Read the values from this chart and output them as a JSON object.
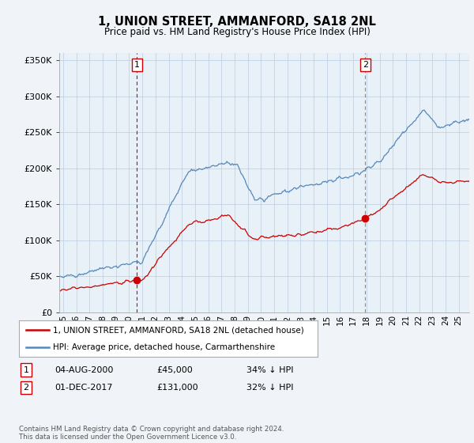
{
  "title": "1, UNION STREET, AMMANFORD, SA18 2NL",
  "subtitle": "Price paid vs. HM Land Registry's House Price Index (HPI)",
  "legend_line1": "1, UNION STREET, AMMANFORD, SA18 2NL (detached house)",
  "legend_line2": "HPI: Average price, detached house, Carmarthenshire",
  "footnote": "Contains HM Land Registry data © Crown copyright and database right 2024.\nThis data is licensed under the Open Government Licence v3.0.",
  "transaction1_label": "1",
  "transaction1_date": "04-AUG-2000",
  "transaction1_price": "£45,000",
  "transaction1_hpi": "34% ↓ HPI",
  "transaction1_year": 2000.6,
  "transaction1_value": 45000,
  "transaction2_label": "2",
  "transaction2_date": "01-DEC-2017",
  "transaction2_price": "£131,000",
  "transaction2_hpi": "32% ↓ HPI",
  "transaction2_year": 2017.92,
  "transaction2_value": 131000,
  "hpi_color": "#5588bb",
  "price_color": "#cc0000",
  "vline_color": "#cc0000",
  "bg_color": "#f0f4f8",
  "plot_bg_color": "#e8f0f8",
  "ylim": [
    0,
    360000
  ],
  "yticks": [
    0,
    50000,
    100000,
    150000,
    200000,
    250000,
    300000,
    350000
  ],
  "xlim_left": 1994.7,
  "xlim_right": 2025.8
}
